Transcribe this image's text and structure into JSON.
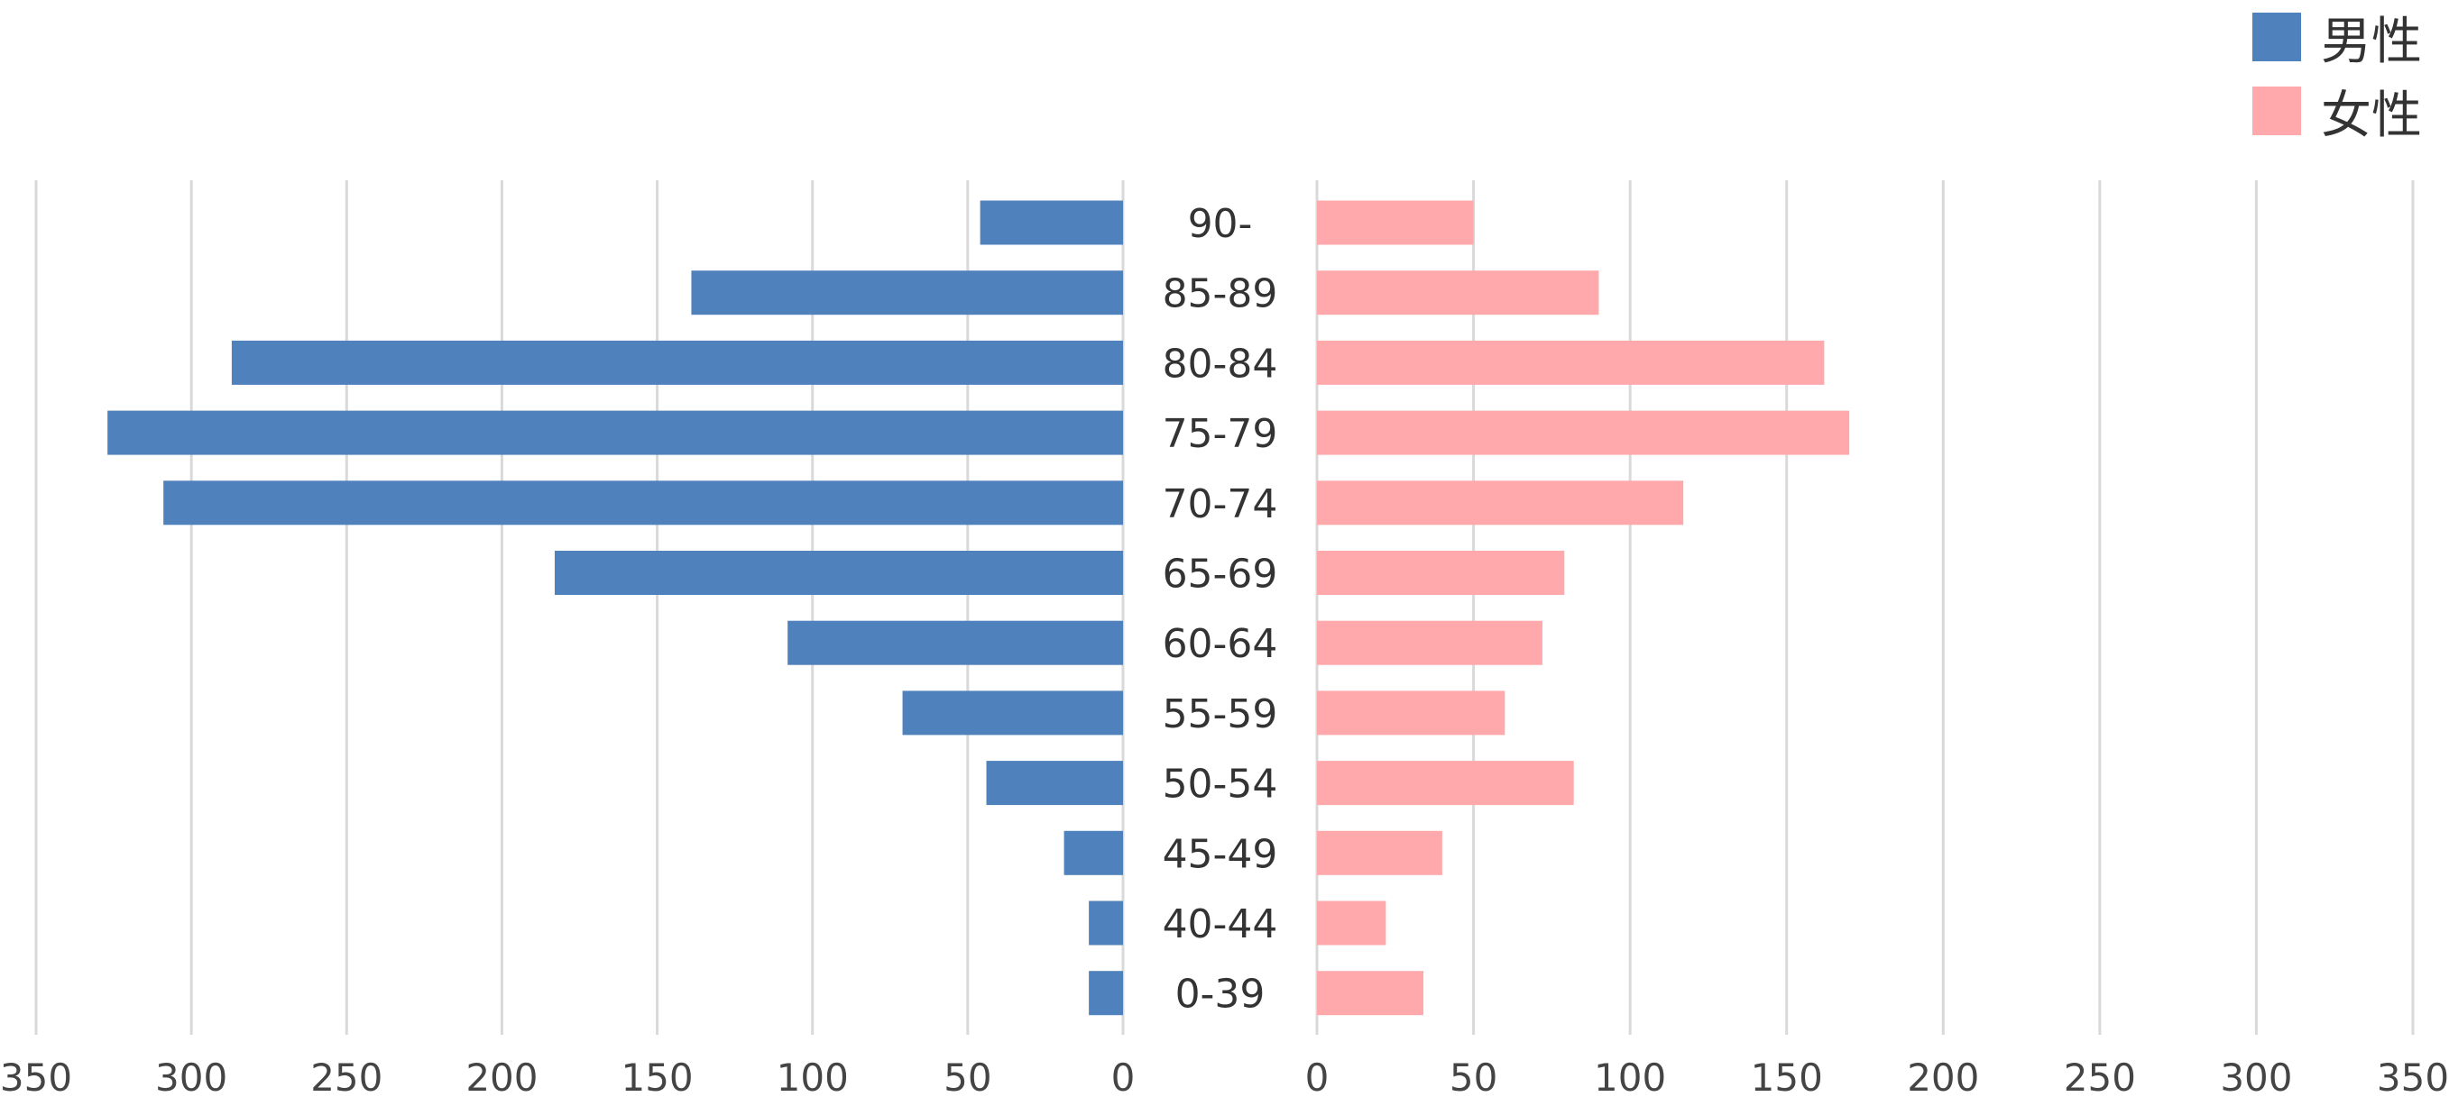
{
  "chart_data": {
    "type": "bar",
    "categories": [
      "90-",
      "85-89",
      "80-84",
      "75-79",
      "70-74",
      "65-69",
      "60-64",
      "55-59",
      "50-54",
      "45-49",
      "40-44",
      "0-39"
    ],
    "series": [
      {
        "name": "男性",
        "color": "#4F81BD",
        "values": [
          46,
          139,
          287,
          327,
          309,
          183,
          108,
          71,
          44,
          19,
          11,
          11
        ]
      },
      {
        "name": "女性",
        "color": "#FFA9AC",
        "values": [
          50,
          90,
          162,
          170,
          117,
          79,
          72,
          60,
          82,
          40,
          22,
          34
        ]
      }
    ],
    "xlim": [
      0,
      350
    ],
    "ticks": [
      350,
      300,
      250,
      200,
      150,
      100,
      50,
      0
    ],
    "right_ticks": [
      0,
      50,
      100,
      150,
      200,
      250,
      300,
      350
    ],
    "grid": true,
    "legend_position": "top-right"
  }
}
